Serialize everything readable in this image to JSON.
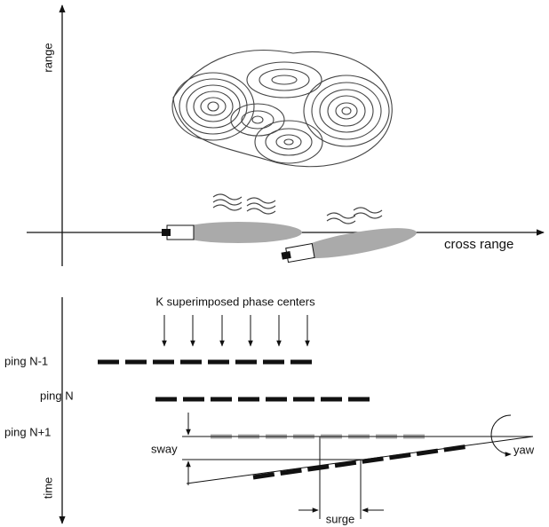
{
  "top_panel": {
    "y_axis_label": "range",
    "x_axis_label": "cross range"
  },
  "bottom_panel": {
    "annotation": "K superimposed phase centers",
    "pings": [
      "ping N-1",
      "ping N",
      "ping N+1"
    ],
    "sway": "sway",
    "yaw": "yaw",
    "surge": "surge",
    "y_axis_label": "time"
  }
}
